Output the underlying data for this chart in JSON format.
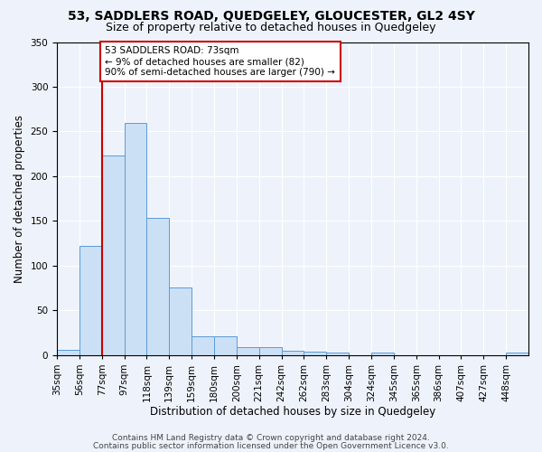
{
  "title": "53, SADDLERS ROAD, QUEDGELEY, GLOUCESTER, GL2 4SY",
  "subtitle": "Size of property relative to detached houses in Quedgeley",
  "xlabel": "Distribution of detached houses by size in Quedgeley",
  "ylabel": "Number of detached properties",
  "bin_edges_labels": [
    "35sqm",
    "56sqm",
    "77sqm",
    "97sqm",
    "118sqm",
    "139sqm",
    "159sqm",
    "180sqm",
    "200sqm",
    "221sqm",
    "242sqm",
    "262sqm",
    "283sqm",
    "304sqm",
    "324sqm",
    "345sqm",
    "365sqm",
    "386sqm",
    "407sqm",
    "427sqm",
    "448sqm"
  ],
  "bar_heights": [
    6,
    122,
    223,
    260,
    153,
    76,
    21,
    21,
    9,
    9,
    5,
    4,
    3,
    0,
    3,
    0,
    0,
    0,
    0,
    0,
    3
  ],
  "bar_color": "#cce0f5",
  "bar_edge_color": "#5b9bd5",
  "vline_x_index": 2,
  "vline_color": "#cc0000",
  "annotation_text": "53 SADDLERS ROAD: 73sqm\n← 9% of detached houses are smaller (82)\n90% of semi-detached houses are larger (790) →",
  "annotation_box_color": "#ffffff",
  "annotation_box_edge": "#cc0000",
  "ylim": [
    0,
    350
  ],
  "yticks": [
    0,
    50,
    100,
    150,
    200,
    250,
    300,
    350
  ],
  "footer1": "Contains HM Land Registry data © Crown copyright and database right 2024.",
  "footer2": "Contains public sector information licensed under the Open Government Licence v3.0.",
  "background_color": "#eef3fb",
  "grid_color": "#ffffff",
  "title_fontsize": 10,
  "subtitle_fontsize": 9,
  "axis_label_fontsize": 8.5,
  "tick_fontsize": 7.5,
  "annotation_fontsize": 7.5,
  "footer_fontsize": 6.5
}
